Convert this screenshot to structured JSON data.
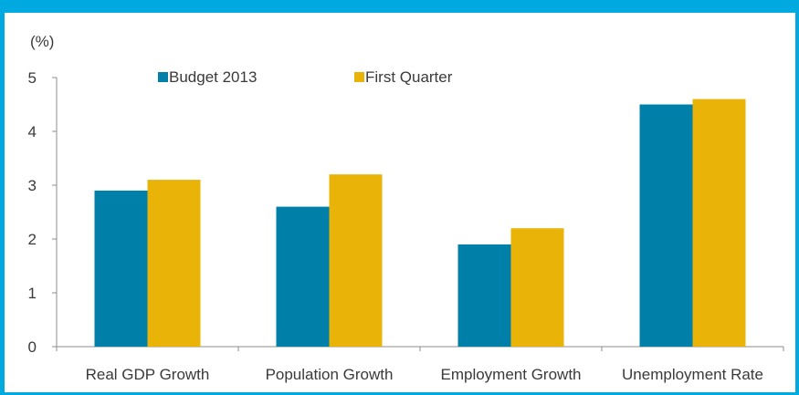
{
  "chart_data": {
    "type": "bar",
    "ylabel": "(%)",
    "categories": [
      "Real GDP Growth",
      "Population Growth",
      "Employment Growth",
      "Unemployment Rate"
    ],
    "series": [
      {
        "name": "Budget 2013",
        "color": "#0080a8",
        "values": [
          2.9,
          2.6,
          1.9,
          4.5
        ]
      },
      {
        "name": "First Quarter",
        "color": "#e9b308",
        "values": [
          3.1,
          3.2,
          2.2,
          4.6
        ]
      }
    ],
    "ylim": [
      0,
      5
    ],
    "yticks": [
      0,
      1,
      2,
      3,
      4,
      5
    ],
    "grid": false,
    "legend_position": "top"
  }
}
